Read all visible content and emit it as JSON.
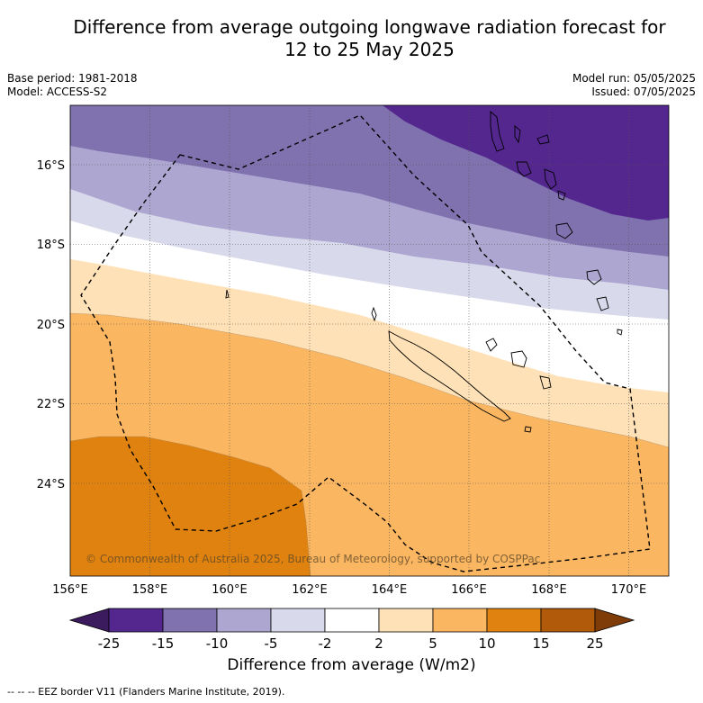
{
  "title_line1": "Difference from average outgoing longwave radiation forecast for",
  "title_line2": "12 to 25 May 2025",
  "meta_left": [
    "Base period: 1981-2018",
    "Model: ACCESS-S2"
  ],
  "meta_right": [
    "Model run: 05/05/2025",
    "Issued: 07/05/2025"
  ],
  "lat_labels": [
    "16°S",
    "18°S",
    "20°S",
    "22°S",
    "24°S"
  ],
  "lon_labels": [
    "156°E",
    "158°E",
    "160°E",
    "162°E",
    "164°E",
    "166°E",
    "168°E",
    "170°E"
  ],
  "copyright": "© Commonwealth of Australia 2025, Bureau of Meteorology, supported by COSPPac",
  "colorbar": {
    "ticks": [
      "-25",
      "-15",
      "-10",
      "-5",
      "-2",
      "2",
      "5",
      "10",
      "15",
      "25"
    ],
    "colors": [
      "#3c1a5e",
      "#54278f",
      "#7f72ae",
      "#ada6d1",
      "#d9d9ec",
      "#ffffff",
      "#fee1b6",
      "#fbb661",
      "#e0820f",
      "#b05a0a",
      "#7f3b08"
    ],
    "label": "Difference from average (W/m2)"
  },
  "footnote": "--  --  -- EEZ border V11 (Flanders Marine Institute, 2019)."
}
